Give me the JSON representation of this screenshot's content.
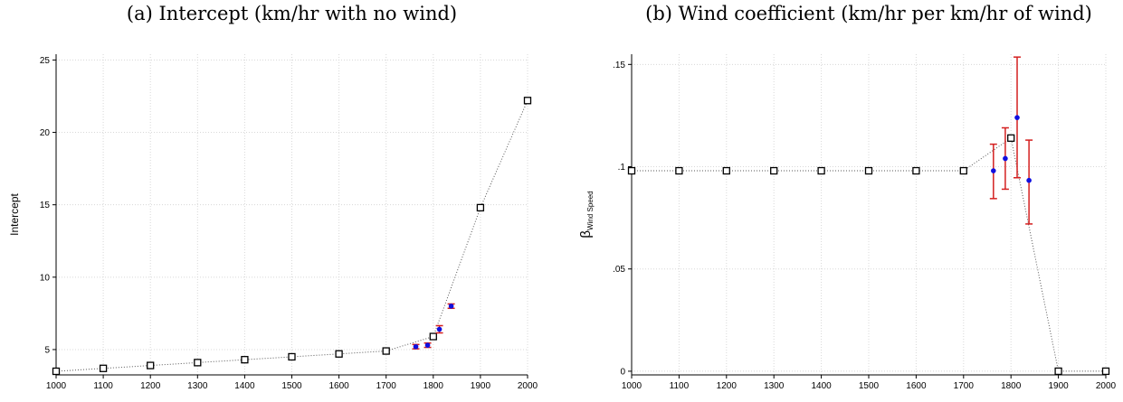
{
  "chart_data": [
    {
      "type": "scatter",
      "title": "(a) Intercept (km/hr with no wind)",
      "y_label": "Intercept",
      "xlim": [
        1000,
        2000
      ],
      "ylim": [
        3.25,
        25.4
      ],
      "xticks": [
        1000,
        1100,
        1200,
        1300,
        1400,
        1500,
        1600,
        1700,
        1800,
        1900,
        2000
      ],
      "yticks": [
        5,
        10,
        15,
        20,
        25
      ],
      "grid": true,
      "series": [
        {
          "marker": "square",
          "line": true,
          "color": "#000000",
          "x": [
            1000,
            1100,
            1200,
            1300,
            1400,
            1500,
            1600,
            1700,
            1800,
            1900,
            2000
          ],
          "values": [
            3.5,
            3.7,
            3.9,
            4.1,
            4.3,
            4.5,
            4.7,
            4.9,
            5.9,
            14.8,
            22.2
          ]
        },
        {
          "marker": "circle",
          "line": false,
          "color": "#1010e0",
          "error_color": "#d42020",
          "x": [
            1763,
            1788,
            1813,
            1838
          ],
          "values": [
            5.2,
            5.3,
            6.4,
            8.0
          ],
          "lower": [
            5.05,
            5.15,
            6.15,
            7.85
          ],
          "upper": [
            5.35,
            5.45,
            6.65,
            8.15
          ]
        }
      ]
    },
    {
      "type": "scatter",
      "title": "(b) Wind coefficient (km/hr per km/hr of wind)",
      "y_label": "β",
      "y_label_sub": "Wind Speed",
      "xlim": [
        1000,
        2000
      ],
      "ylim": [
        -0.0018,
        0.155
      ],
      "xticks": [
        1000,
        1100,
        1200,
        1300,
        1400,
        1500,
        1600,
        1700,
        1800,
        1900,
        2000
      ],
      "yticks": [
        0,
        {
          "value": 0.05,
          "label": ".05"
        },
        {
          "value": 0.1,
          "label": ".1"
        },
        {
          "value": 0.15,
          "label": ".15"
        }
      ],
      "grid": true,
      "series": [
        {
          "marker": "square",
          "line": true,
          "color": "#000000",
          "x": [
            1000,
            1100,
            1200,
            1300,
            1400,
            1500,
            1600,
            1700,
            1800,
            1900,
            2000
          ],
          "values": [
            0.098,
            0.098,
            0.098,
            0.098,
            0.098,
            0.098,
            0.098,
            0.098,
            0.114,
            0,
            0
          ]
        },
        {
          "marker": "circle",
          "line": false,
          "color": "#1010e0",
          "error_color": "#d42020",
          "x": [
            1763,
            1788,
            1813,
            1838
          ],
          "values": [
            0.098,
            0.104,
            0.124,
            0.0933
          ],
          "lower": [
            0.0844,
            0.089,
            0.0946,
            0.072
          ],
          "upper": [
            0.111,
            0.119,
            0.1536,
            0.113
          ]
        }
      ]
    }
  ]
}
